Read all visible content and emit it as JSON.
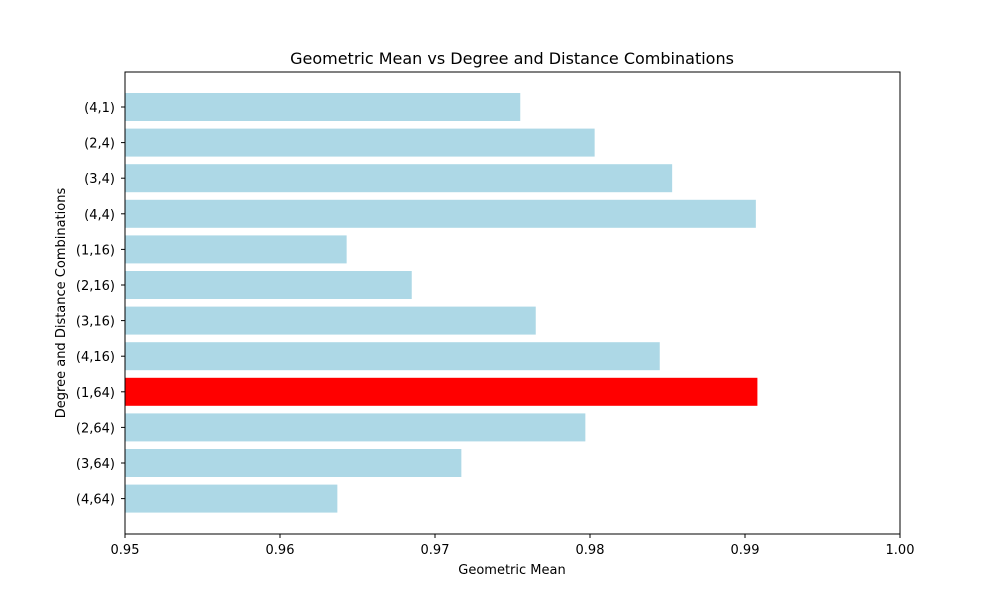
{
  "chart_data": {
    "type": "bar",
    "orientation": "horizontal",
    "title": "Geometric Mean vs Degree and Distance Combinations",
    "xlabel": "Geometric Mean",
    "ylabel": "Degree and Distance Combinations",
    "xlim": [
      0.95,
      1.0
    ],
    "xticks": [
      "0.95",
      "0.96",
      "0.97",
      "0.98",
      "0.99",
      "1.00"
    ],
    "categories": [
      "(4,1)",
      "(2,4)",
      "(3,4)",
      "(4,4)",
      "(1,16)",
      "(2,16)",
      "(3,16)",
      "(4,16)",
      "(1,64)",
      "(2,64)",
      "(3,64)",
      "(4,64)"
    ],
    "values": [
      0.9755,
      0.9803,
      0.9853,
      0.9907,
      0.9643,
      0.9685,
      0.9765,
      0.9845,
      0.9908,
      0.9797,
      0.9717,
      0.9637
    ],
    "bar_color": "#add8e6",
    "highlight_color": "#ff0000",
    "highlight_index": 8,
    "grid": false,
    "legend": "none"
  }
}
